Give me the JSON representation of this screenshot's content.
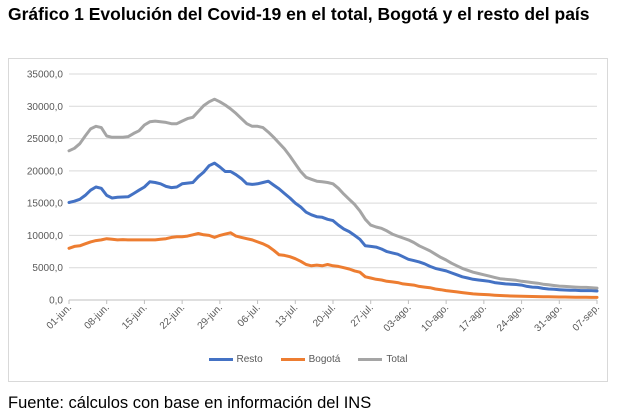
{
  "title": "Gráfico 1 Evolución del Covid-19 en el total, Bogotá y el resto del país",
  "source": "Fuente: cálculos con base en información del INS",
  "chart_data": {
    "type": "line",
    "title": "",
    "xlabel": "",
    "ylabel": "",
    "ylim": [
      0,
      35000
    ],
    "yticks": [
      "0,0",
      "5000,0",
      "10000,0",
      "15000,0",
      "20000,0",
      "25000,0",
      "30000,0",
      "35000,0"
    ],
    "grid": "horizontal",
    "legend_position": "bottom",
    "x_start": "01-jun.",
    "x_end": "07-sep.",
    "xticks": [
      "01-jun.",
      "08-jun.",
      "15-jun.",
      "22-jun.",
      "29-jun.",
      "06-jul.",
      "13-jul.",
      "20-jul.",
      "27-jul.",
      "03-ago.",
      "10-ago.",
      "17-ago.",
      "24-ago.",
      "31-ago.",
      "07-sep."
    ],
    "series": [
      {
        "name": "Resto",
        "color": "#4472c4",
        "values": [
          15100,
          15300,
          15600,
          16200,
          17000,
          17500,
          17300,
          16200,
          15800,
          15900,
          15950,
          16000,
          16500,
          17000,
          17500,
          18300,
          18200,
          18000,
          17600,
          17400,
          17500,
          18000,
          18100,
          18200,
          19100,
          19800,
          20800,
          21200,
          20600,
          19900,
          19900,
          19400,
          18800,
          18000,
          17900,
          18000,
          18200,
          18400,
          17800,
          17200,
          16500,
          15800,
          15000,
          14400,
          13600,
          13200,
          12900,
          12800,
          12500,
          12300,
          11600,
          11000,
          10600,
          10000,
          9400,
          8400,
          8300,
          8200,
          7900,
          7500,
          7300,
          7100,
          6700,
          6300,
          6100,
          5900,
          5600,
          5200,
          4900,
          4700,
          4500,
          4200,
          3900,
          3600,
          3400,
          3200,
          3100,
          3000,
          2900,
          2700,
          2600,
          2500,
          2450,
          2400,
          2300,
          2100,
          2000,
          1950,
          1800,
          1700,
          1650,
          1600,
          1550,
          1500,
          1500,
          1450,
          1450,
          1450,
          1400
        ]
      },
      {
        "name": "Bogotá",
        "color": "#ed7d31",
        "values": [
          8000,
          8300,
          8400,
          8700,
          9000,
          9200,
          9300,
          9500,
          9400,
          9300,
          9350,
          9300,
          9300,
          9300,
          9300,
          9300,
          9300,
          9400,
          9500,
          9700,
          9800,
          9800,
          9900,
          10100,
          10300,
          10100,
          10000,
          9700,
          10000,
          10200,
          10400,
          9900,
          9700,
          9500,
          9300,
          9000,
          8700,
          8300,
          7700,
          7000,
          6900,
          6700,
          6400,
          6000,
          5500,
          5300,
          5400,
          5300,
          5500,
          5300,
          5200,
          5000,
          4800,
          4500,
          4300,
          3600,
          3400,
          3200,
          3100,
          2900,
          2800,
          2700,
          2500,
          2400,
          2300,
          2100,
          2000,
          1900,
          1700,
          1600,
          1450,
          1350,
          1250,
          1150,
          1050,
          950,
          900,
          850,
          800,
          750,
          700,
          650,
          620,
          600,
          580,
          560,
          540,
          520,
          500,
          490,
          480,
          470,
          460,
          450,
          440,
          430,
          420,
          410,
          400
        ]
      },
      {
        "name": "Total",
        "color": "#a5a5a5",
        "values": [
          23100,
          23500,
          24200,
          25400,
          26500,
          26900,
          26700,
          25400,
          25200,
          25200,
          25200,
          25300,
          25800,
          26200,
          27100,
          27600,
          27700,
          27600,
          27500,
          27300,
          27300,
          27700,
          28100,
          28300,
          29200,
          30100,
          30700,
          31100,
          30700,
          30200,
          29600,
          28900,
          28100,
          27300,
          26900,
          26900,
          26700,
          26000,
          25200,
          24300,
          23400,
          22300,
          21100,
          19900,
          19000,
          18700,
          18400,
          18300,
          18200,
          18000,
          17300,
          16400,
          15600,
          14800,
          13800,
          12500,
          11600,
          11300,
          11100,
          10700,
          10200,
          9900,
          9600,
          9300,
          8900,
          8400,
          8000,
          7600,
          7100,
          6600,
          6200,
          5700,
          5300,
          4900,
          4600,
          4300,
          4100,
          3900,
          3700,
          3500,
          3300,
          3200,
          3150,
          3050,
          2900,
          2800,
          2700,
          2600,
          2450,
          2350,
          2250,
          2150,
          2100,
          2050,
          2000,
          1950,
          1950,
          1900,
          1850
        ]
      }
    ]
  }
}
